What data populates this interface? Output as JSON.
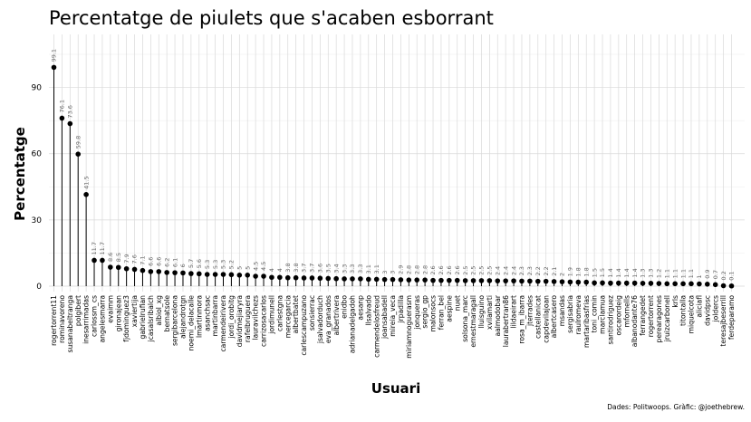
{
  "chart_data": {
    "type": "lollipop",
    "title": "Percentatge de piulets que s'acaben esborrant",
    "xlabel": "Usuari",
    "ylabel": "Percentatge",
    "caption": "Dades: Politwoops. Gràfic: @joethebrew.",
    "ylim": [
      0,
      100
    ],
    "yticks": [
      0,
      30,
      60,
      90
    ],
    "grid": true,
    "point_color": "#000000",
    "categories": [
      "rogertorrent11",
      "rominavoreno",
      "susanabeltranga",
      "polgibert",
      "inesarrimadas",
      "carlossm_cs",
      "angelesmarra",
      "evaimm",
      "gironajean",
      "fjdominguez3",
      "xaviertija",
      "gabrielrufian",
      "jcasalsribalch",
      "albiol_xg",
      "bernatsole",
      "sergibarcelona",
      "alejandrotgn",
      "noemi_delacalle",
      "lmartinmora",
      "asanchsac",
      "martinbarra",
      "carmendeirivera",
      "jordi_orobitg",
      "davidmejiaryra",
      "rafelbruguera",
      "lauravilchezs",
      "carrizosacarlos",
      "jordimunell",
      "carlestgna",
      "mercegarcia",
      "albertbatet",
      "carlescampuzano",
      "sonsierrac",
      "jsalvadorduch",
      "eva_granados",
      "albertrivera",
      "enidbo",
      "adrianadelgadoh",
      "aesanp",
      "llsalvado",
      "carmendelosfreud",
      "joansabadell",
      "mireia_veca",
      "jrpadilla",
      "miriamnoguerasm",
      "jonqueras",
      "sergio_gp",
      "malonsocs",
      "ferran_bel",
      "aespine",
      "nuet",
      "solsona_marc",
      "ernestmaragall",
      "lluisguino",
      "xvilamarti",
      "aalmodobar",
      "laurabertran86",
      "lildaeirart",
      "rosa_m_ibarra",
      "jterrades",
      "castellanicat",
      "capdevilajoan",
      "albertcasero",
      "msandas",
      "sergisabria",
      "raulromeva",
      "martaribasfrias",
      "toni_comin",
      "marclamua",
      "santirodriguez",
      "oscarordeig",
      "mfornells",
      "albanodante76",
      "ferrangedet",
      "rogertorrent",
      "perearagones",
      "jruizcarbonell",
      "krls",
      "titontalla",
      "miquelcota",
      "aliciafl",
      "davidpsc",
      "joldercs",
      "teresajbeserrill",
      "ferdeparamo"
    ],
    "values": [
      99.1,
      76.1,
      73.6,
      59.8,
      41.5,
      11.7,
      11.7,
      8.6,
      8.5,
      7.9,
      7.6,
      7.1,
      6.6,
      6.6,
      6.2,
      6.1,
      6,
      5.7,
      5.6,
      5.3,
      5.3,
      5.3,
      5.2,
      5,
      5,
      4.5,
      4.5,
      4,
      4,
      3.8,
      3.8,
      3.7,
      3.7,
      3.6,
      3.5,
      3.4,
      3.3,
      3.3,
      3.3,
      3.1,
      3.1,
      3,
      3,
      2.9,
      2.8,
      2.8,
      2.8,
      2.6,
      2.6,
      2.6,
      2.6,
      2.5,
      2.5,
      2.5,
      2.5,
      2.4,
      2.4,
      2.4,
      2.3,
      2.3,
      2.2,
      2.2,
      2.1,
      2,
      1.9,
      1.8,
      1.8,
      1.5,
      1.5,
      1.4,
      1.4,
      1.4,
      1.4,
      1.3,
      1.3,
      1.2,
      1.1,
      1.1,
      1.1,
      1.1,
      1,
      0.9,
      0.7,
      0.2,
      0.1
    ],
    "value_labels": [
      "99.1",
      "76.1",
      "73.6",
      "59.8",
      "41.5",
      "11.7",
      "11.7",
      "8.6",
      "8.5",
      "7.9",
      "7.6",
      "7.1",
      "6.6",
      "6.6",
      "6.2",
      "6.1",
      "6",
      "5.7",
      "5.6",
      "5.3",
      "5.3",
      "5.3",
      "5.2",
      "5",
      "5",
      "4.5",
      "4.5",
      "4",
      "4",
      "3.8",
      "3.8",
      "3.7",
      "3.7",
      "3.6",
      "3.5",
      "3.4",
      "3.3",
      "3.3",
      "3.3",
      "3.1",
      "3.1",
      "3",
      "3",
      "2.9",
      "2.8",
      "2.8",
      "2.8",
      "2.6",
      "2.6",
      "2.6",
      "2.6",
      "2.5",
      "2.5",
      "2.5",
      "2.5",
      "2.4",
      "2.4",
      "2.4",
      "2.3",
      "2.3",
      "2.2",
      "2.2",
      "2.1",
      "2",
      "1.9",
      "1.8",
      "1.8",
      "1.5",
      "1.5",
      "1.4",
      "1.4",
      "1.4",
      "1.4",
      "1.3",
      "1.3",
      "1.2",
      "1.1",
      "1.1",
      "1.1",
      "1.1",
      "1",
      "0.9",
      "0.7",
      "0.2",
      "0.1"
    ]
  }
}
